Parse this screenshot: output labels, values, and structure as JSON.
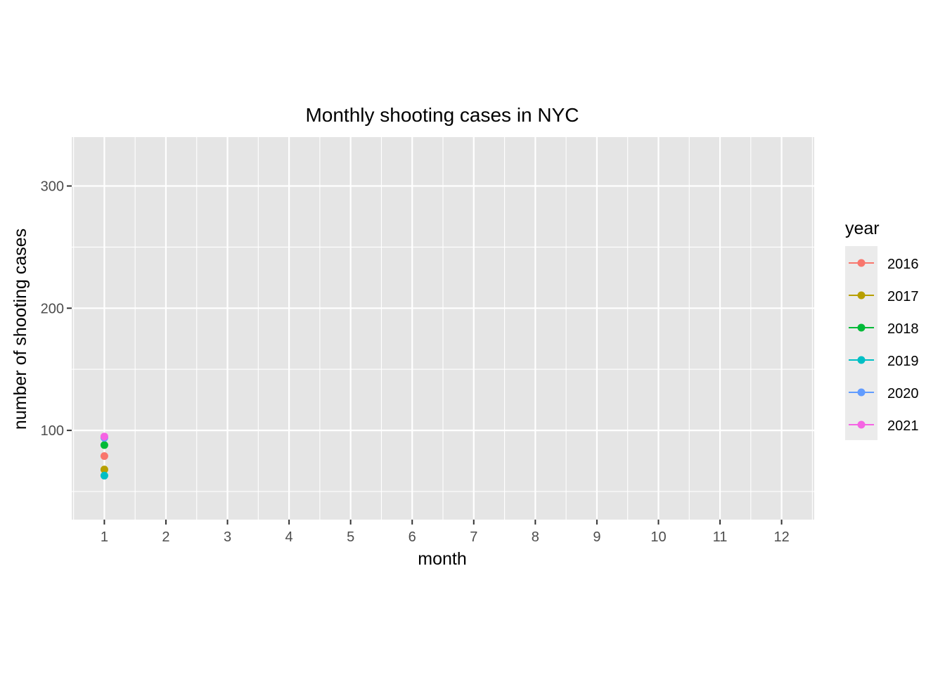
{
  "chart_data": {
    "type": "line",
    "title": "Monthly shooting cases in NYC",
    "xlabel": "month",
    "ylabel": "number of shooting cases",
    "x": [
      1
    ],
    "xlim": [
      0.47,
      12.53
    ],
    "ylim": [
      27,
      340
    ],
    "x_ticks": [
      "1",
      "2",
      "3",
      "4",
      "5",
      "6",
      "7",
      "8",
      "9",
      "10",
      "11",
      "12"
    ],
    "y_ticks": [
      100,
      200,
      300
    ],
    "grid": true,
    "legend": {
      "title": "year",
      "position": "right"
    },
    "series": [
      {
        "name": "2016",
        "color": "#F8766D",
        "values": [
          79
        ]
      },
      {
        "name": "2017",
        "color": "#B79F00",
        "values": [
          68
        ]
      },
      {
        "name": "2018",
        "color": "#00BA38",
        "values": [
          88
        ]
      },
      {
        "name": "2019",
        "color": "#00BFC4",
        "values": [
          63
        ]
      },
      {
        "name": "2020",
        "color": "#619CFF",
        "values": [
          94
        ]
      },
      {
        "name": "2021",
        "color": "#F564E3",
        "values": [
          95
        ]
      }
    ]
  }
}
